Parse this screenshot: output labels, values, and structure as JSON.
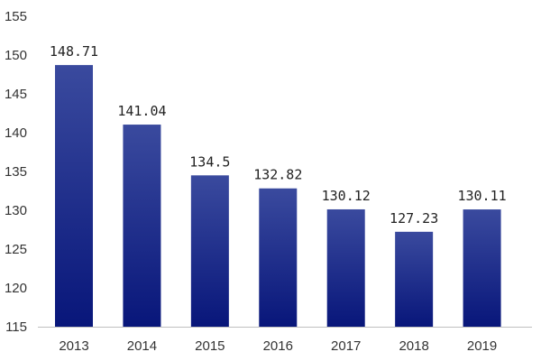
{
  "chart_data": {
    "type": "bar",
    "title": "",
    "xlabel": "",
    "ylabel": "",
    "categories": [
      "2013",
      "2014",
      "2015",
      "2016",
      "2017",
      "2018",
      "2019"
    ],
    "values": [
      148.71,
      141.04,
      134.5,
      132.82,
      130.12,
      127.23,
      130.11
    ],
    "value_labels": [
      "148.71",
      "141.04",
      "134.5",
      "132.82",
      "130.12",
      "127.23",
      "130.11"
    ],
    "ylim": [
      115,
      155
    ],
    "yticks": [
      115,
      120,
      125,
      130,
      135,
      140,
      145,
      150,
      155
    ],
    "grid": false,
    "legend": "none"
  },
  "colors": {
    "bar_top": "#3a4a9e",
    "bar_bottom": "#08167a",
    "baseline": "#bfbfbf",
    "text": "#333333"
  }
}
